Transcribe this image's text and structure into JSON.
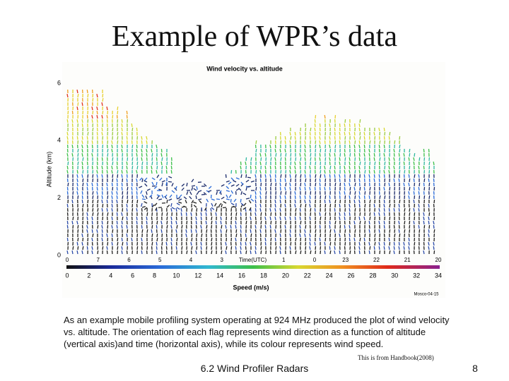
{
  "title": "Example of WPR’s data",
  "figure": {
    "title": "Wind velocity vs. altitude",
    "y_label": "Altitude (km)",
    "y_ticks": [
      "6",
      "4",
      "2",
      "0"
    ],
    "time_labels": [
      "0",
      "7",
      "6",
      "5",
      "4",
      "3",
      "Time(UTC)",
      "1",
      "0",
      "23",
      "22",
      "21",
      "20"
    ],
    "speed_labels": [
      "0",
      "2",
      "4",
      "6",
      "8",
      "10",
      "12",
      "14",
      "16",
      "18",
      "20",
      "22",
      "24",
      "26",
      "28",
      "30",
      "32",
      "34"
    ],
    "speed_label": "Speed (m/s)",
    "stamp": "Mosco-04-15"
  },
  "caption": "As an example mobile profiling system operating at 924 MHz produced the plot of wind velocity vs. altitude. The orientation of each flag represents wind direction as a function of altitude (vertical axis)and time (horizontal axis), while its colour represents wind speed.",
  "source": "This is from Handbook(2008)",
  "footer": "6.2 Wind Profiler Radars",
  "page_number": "8"
}
